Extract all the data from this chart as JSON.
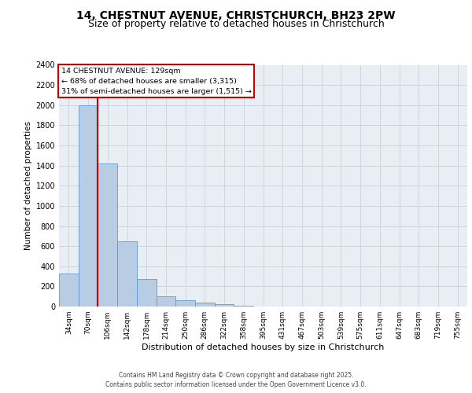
{
  "title1": "14, CHESTNUT AVENUE, CHRISTCHURCH, BH23 2PW",
  "title2": "Size of property relative to detached houses in Christchurch",
  "xlabel": "Distribution of detached houses by size in Christchurch",
  "ylabel": "Number of detached properties",
  "footer1": "Contains HM Land Registry data © Crown copyright and database right 2025.",
  "footer2": "Contains public sector information licensed under the Open Government Licence v3.0.",
  "annotation_title": "14 CHESTNUT AVENUE: 129sqm",
  "annotation_line1": "← 68% of detached houses are smaller (3,315)",
  "annotation_line2": "31% of semi-detached houses are larger (1,515) →",
  "bar_categories": [
    "34sqm",
    "70sqm",
    "106sqm",
    "142sqm",
    "178sqm",
    "214sqm",
    "250sqm",
    "286sqm",
    "322sqm",
    "358sqm",
    "395sqm",
    "431sqm",
    "467sqm",
    "503sqm",
    "539sqm",
    "575sqm",
    "611sqm",
    "647sqm",
    "683sqm",
    "719sqm",
    "755sqm"
  ],
  "bar_values": [
    330,
    2000,
    1420,
    650,
    270,
    100,
    60,
    40,
    20,
    10,
    0,
    0,
    0,
    0,
    0,
    0,
    0,
    0,
    0,
    0,
    0
  ],
  "bar_color": "#b8cce4",
  "bar_edge_color": "#5b9bd5",
  "vline_pos": 1.5,
  "vline_color": "#cc0000",
  "ylim": [
    0,
    2400
  ],
  "yticks": [
    0,
    200,
    400,
    600,
    800,
    1000,
    1200,
    1400,
    1600,
    1800,
    2000,
    2200,
    2400
  ],
  "grid_color": "#ccd5e0",
  "bg_color": "#e8eef4",
  "annotation_box_color": "#cc0000",
  "title1_fontsize": 10,
  "title2_fontsize": 9
}
